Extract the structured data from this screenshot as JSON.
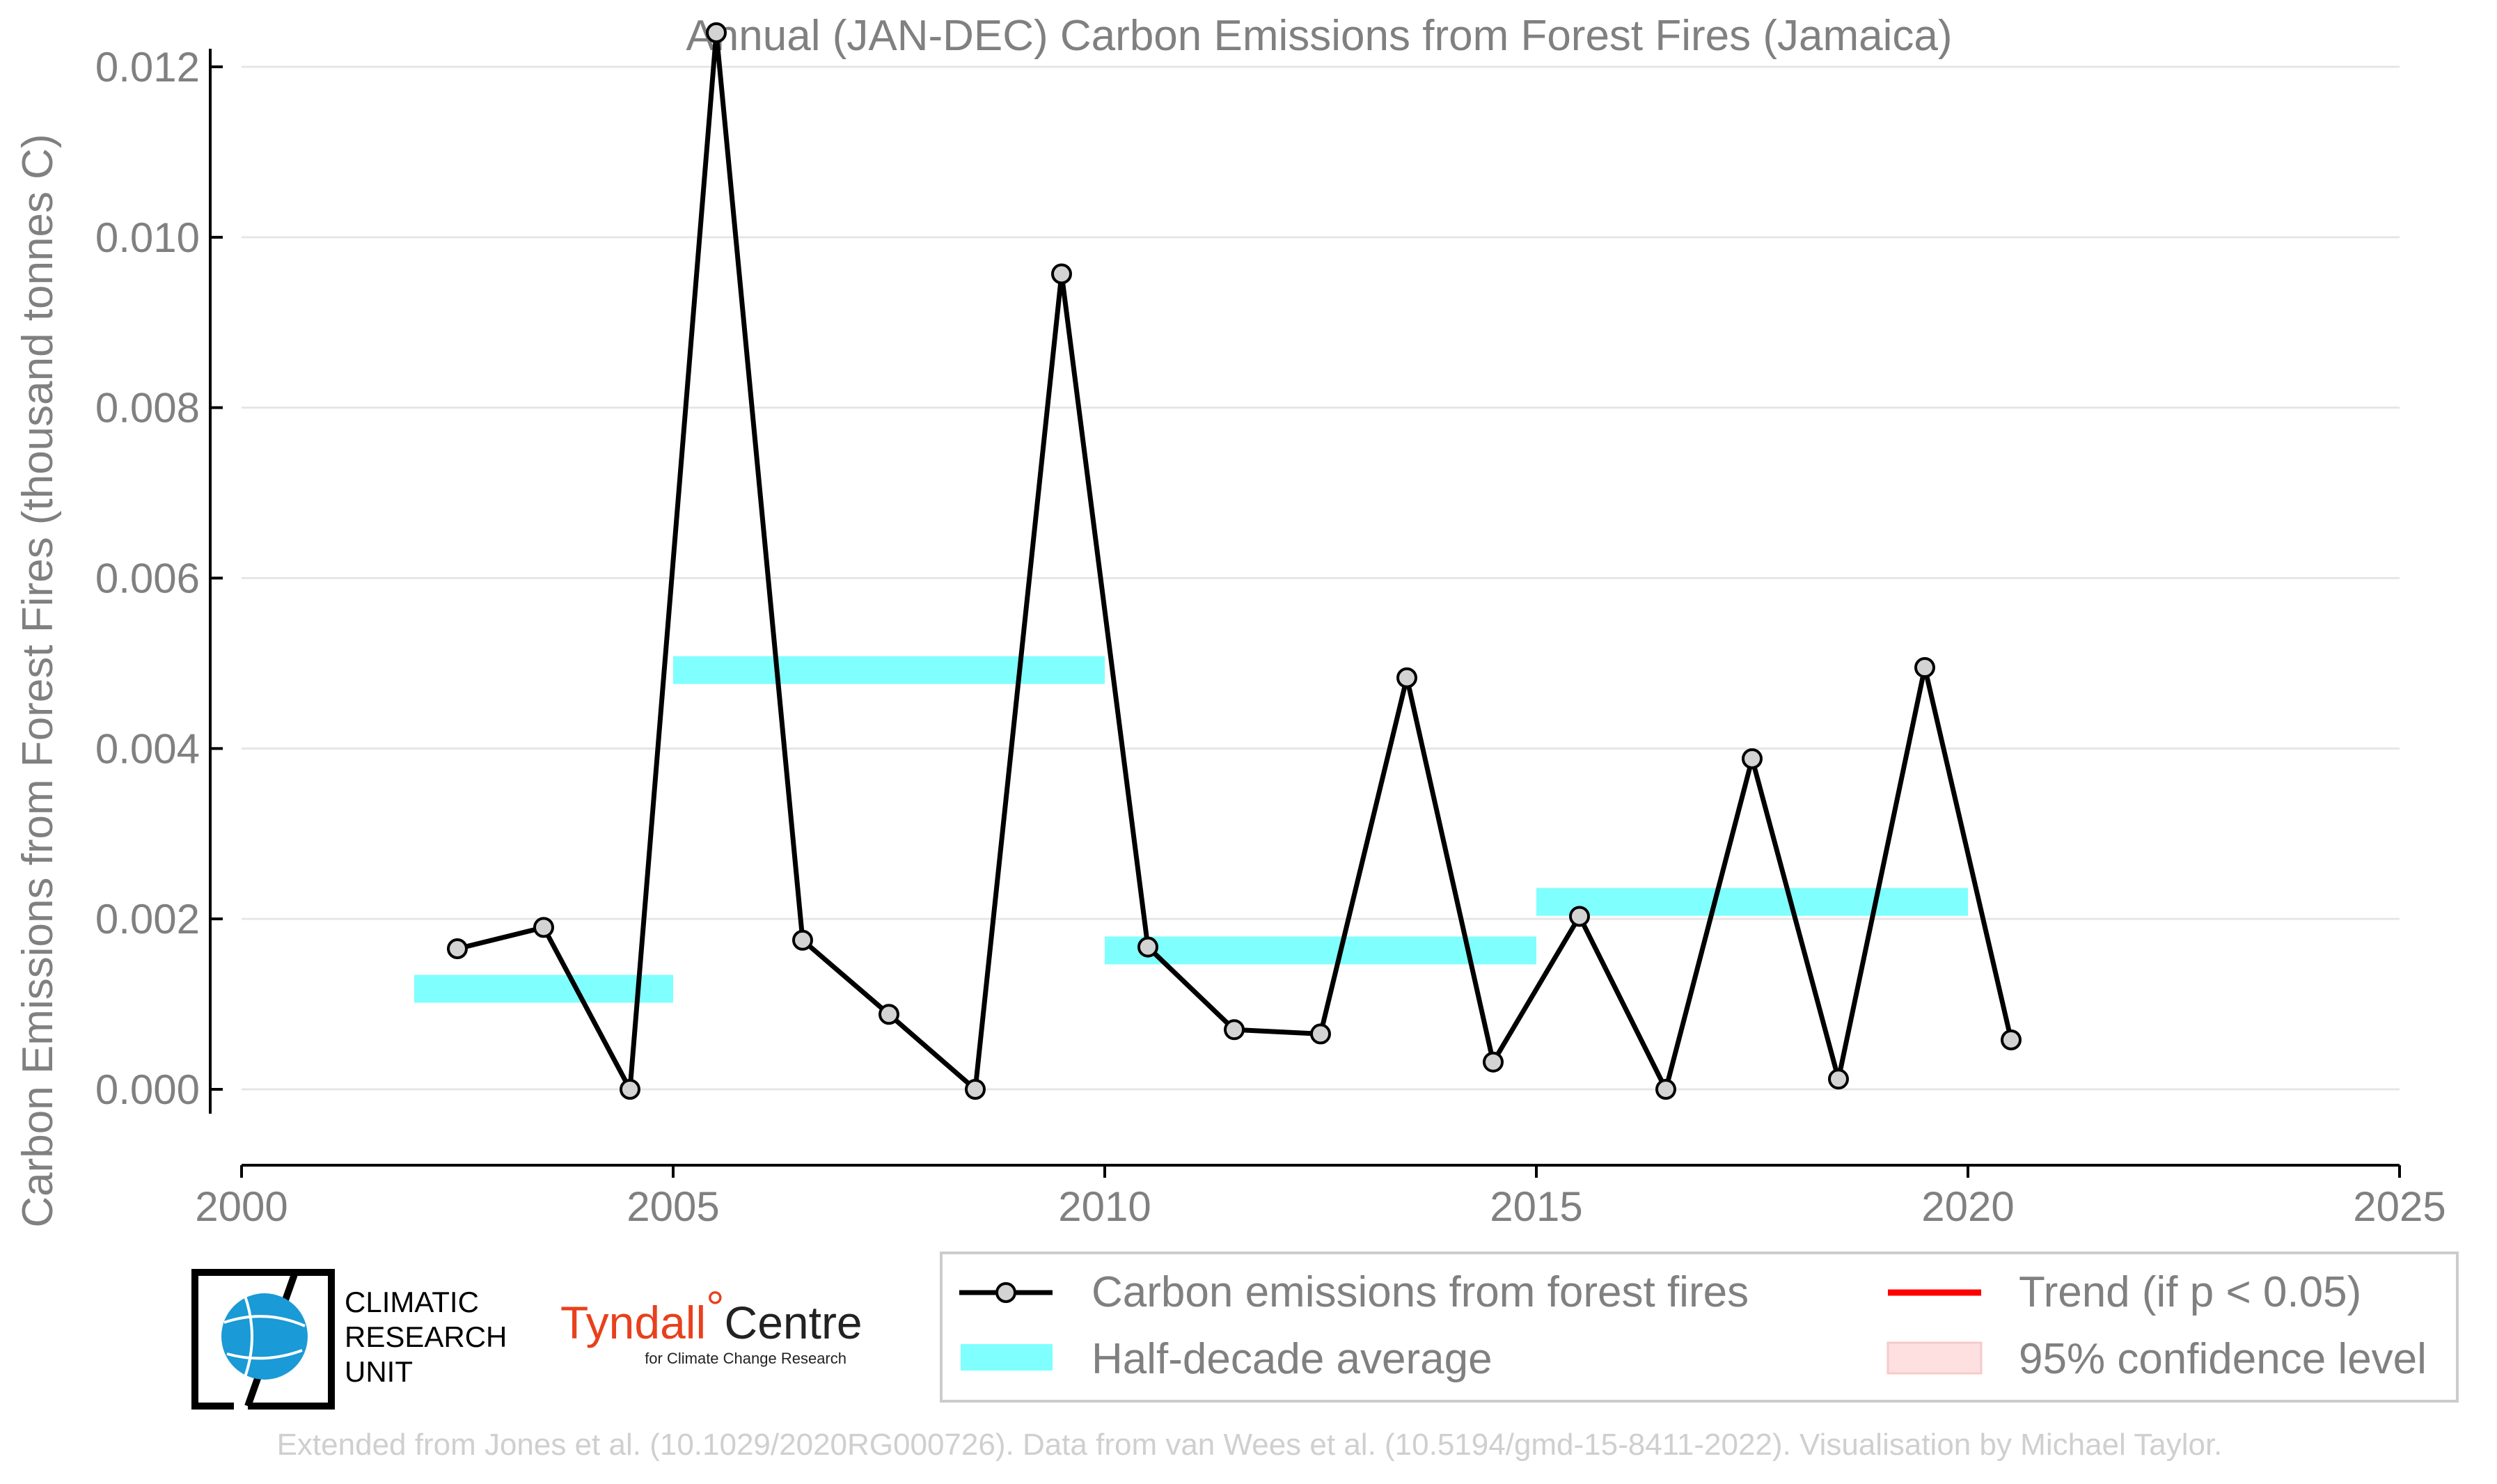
{
  "chart_data": {
    "type": "line",
    "title": "Annual (JAN-DEC) Carbon Emissions from Forest Fires (Jamaica)",
    "xlabel": "",
    "ylabel": "Carbon Emissions from Forest Fires (thousand tonnes C)",
    "xlim": [
      2000,
      2025
    ],
    "ylim": [
      -0.001,
      0.0125
    ],
    "x_ticks": [
      "2000",
      "2005",
      "2010",
      "2015",
      "2020",
      "2025"
    ],
    "y_ticks": [
      "0.000",
      "0.002",
      "0.004",
      "0.006",
      "0.008",
      "0.010",
      "0.012"
    ],
    "grid": "horizontal",
    "legend_position": "bottom",
    "series": [
      {
        "name": "Carbon emissions from forest fires",
        "color": "#000000",
        "marker_color": "#d3d3d3",
        "x": [
          2002.5,
          2003.5,
          2004.5,
          2005.5,
          2006.5,
          2007.5,
          2008.5,
          2009.5,
          2010.5,
          2011.5,
          2012.5,
          2013.5,
          2014.5,
          2015.5,
          2016.5,
          2017.5,
          2018.5,
          2019.5,
          2020.5
        ],
        "y": [
          0.00165,
          0.0019,
          0.0,
          0.0124,
          0.00175,
          0.00088,
          0.0,
          0.00957,
          0.00167,
          0.0007,
          0.00065,
          0.00483,
          0.00032,
          0.00203,
          0.0,
          0.00388,
          0.00012,
          0.00495,
          0.00058
        ]
      },
      {
        "name": "Half-decade average",
        "color": "#80ffff",
        "segments": [
          {
            "x_start": 2002,
            "x_end": 2005,
            "y": 0.00118
          },
          {
            "x_start": 2005,
            "x_end": 2010,
            "y": 0.00492
          },
          {
            "x_start": 2010,
            "x_end": 2015,
            "y": 0.00163
          },
          {
            "x_start": 2015,
            "x_end": 2020,
            "y": 0.0022
          }
        ]
      }
    ],
    "legend": [
      {
        "label": "Carbon emissions from forest fires",
        "kind": "line-marker",
        "color": "#000000"
      },
      {
        "label": "Trend (if p < 0.05)",
        "kind": "line",
        "color": "#ff0000"
      },
      {
        "label": "Half-decade average",
        "kind": "patch",
        "color": "#80ffff"
      },
      {
        "label": "95% confidence level",
        "kind": "patch",
        "color": "#ffe0e0"
      }
    ]
  },
  "logos": {
    "cru_lines": [
      "CLIMATIC",
      "RESEARCH",
      "UNIT"
    ],
    "tyndall_main": "Tyndall",
    "tyndall_degree": "°",
    "tyndall_centre": "Centre",
    "tyndall_sub": "for Climate Change Research"
  },
  "credit": "Extended from Jones et al. (10.1029/2020RG000726). Data from van Wees et al. (10.5194/gmd-15-8411-2022). Visualisation by Michael Taylor."
}
